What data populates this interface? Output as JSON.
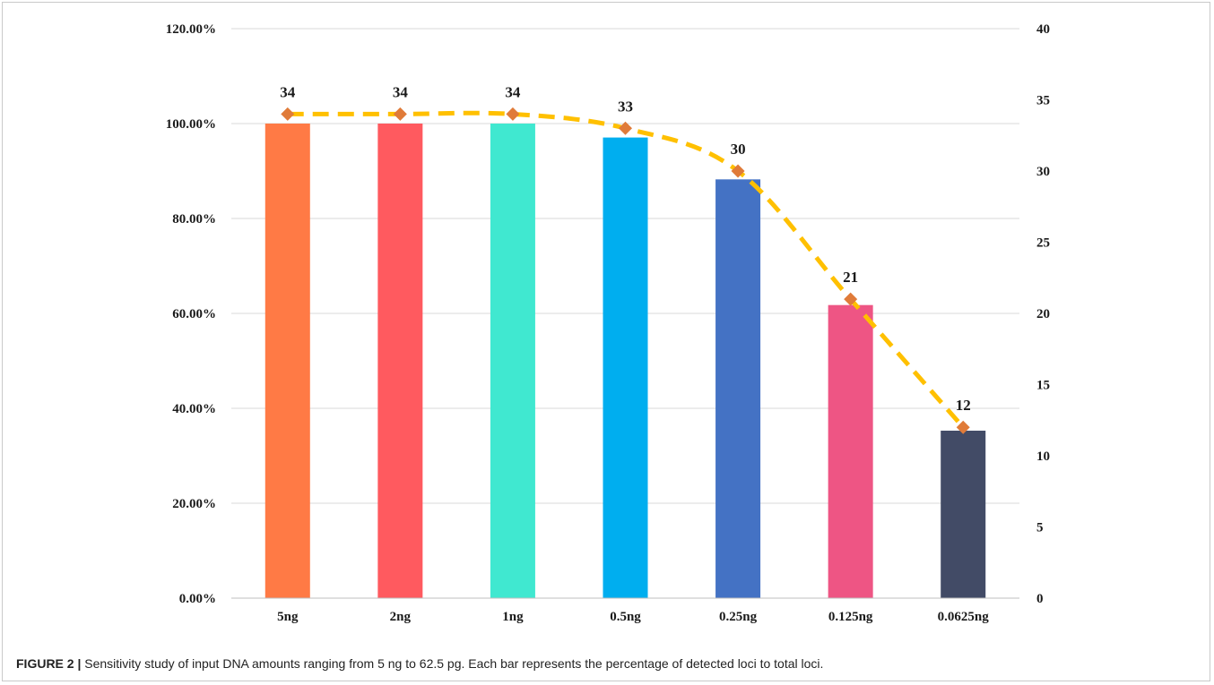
{
  "chart_data": {
    "type": "bar",
    "categories": [
      "5ng",
      "2ng",
      "1ng",
      "0.5ng",
      "0.25ng",
      "0.125ng",
      "0.0625ng"
    ],
    "series": [
      {
        "type": "bar",
        "axis": "left",
        "values": [
          100.0,
          100.0,
          100.0,
          97.06,
          88.24,
          61.76,
          35.29
        ],
        "colors": [
          "#FF7A45",
          "#FF5A5F",
          "#40E8D0",
          "#00AEEF",
          "#4472C4",
          "#EE5584",
          "#424B66"
        ]
      },
      {
        "type": "line",
        "axis": "right",
        "values": [
          34,
          34,
          34,
          33,
          30,
          21,
          12
        ],
        "data_labels": [
          "34",
          "34",
          "34",
          "33",
          "30",
          "21",
          "12"
        ],
        "line_color": "#FFC000",
        "line_style": "dashed",
        "marker": "diamond",
        "marker_color": "#E07B39"
      }
    ],
    "y_left": {
      "ylim": [
        0,
        120
      ],
      "ticks": [
        0,
        20,
        40,
        60,
        80,
        100,
        120
      ],
      "tick_labels": [
        "0.00%",
        "20.00%",
        "40.00%",
        "60.00%",
        "80.00%",
        "100.00%",
        "120.00%"
      ]
    },
    "y_right": {
      "ylim": [
        0,
        40
      ],
      "ticks": [
        0,
        5,
        10,
        15,
        20,
        25,
        30,
        35,
        40
      ],
      "tick_labels": [
        "0",
        "5",
        "10",
        "15",
        "20",
        "25",
        "30",
        "35",
        "40"
      ]
    },
    "grid": true,
    "legend": "none"
  },
  "caption": {
    "label": "FIGURE 2 |",
    "text": " Sensitivity study of input DNA amounts ranging from 5 ng to 62.5 pg. Each bar represents the percentage of detected loci to total loci."
  }
}
